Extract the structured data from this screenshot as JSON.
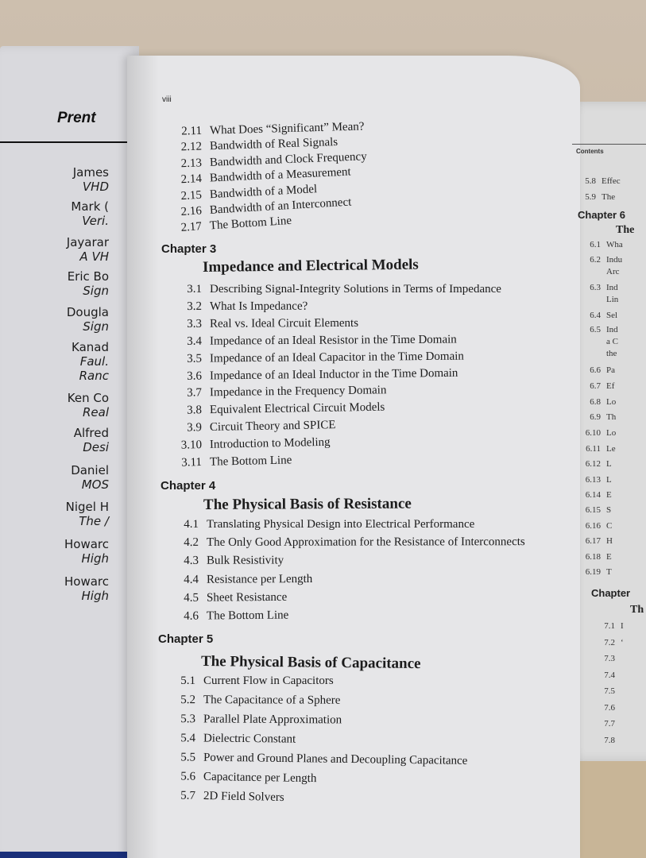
{
  "left_page": {
    "brand": "Prent",
    "entries": [
      {
        "name": "James",
        "sub": "VHD"
      },
      {
        "name": "Mark (",
        "sub": "Veri."
      },
      {
        "name": "Jayarar",
        "sub": "A VH"
      },
      {
        "name": "Eric Bo",
        "sub": "Sign"
      },
      {
        "name": "Dougla",
        "sub": "Sign"
      },
      {
        "name": "Kanad",
        "sub": "Faul. Ranc"
      },
      {
        "name": "Ken Co",
        "sub": "Real"
      },
      {
        "name": "Alfred",
        "sub": "Desi"
      },
      {
        "name": "Daniel",
        "sub": "MOS"
      },
      {
        "name": "Nigel H",
        "sub": "The /"
      },
      {
        "name": "Howarc",
        "sub": "High"
      },
      {
        "name": "Howarc",
        "sub": "High"
      }
    ]
  },
  "center_page": {
    "page_number": "viii",
    "blocks": [
      {
        "chapter": "",
        "title": "",
        "entries": [
          [
            "2.11",
            "What Does “Significant” Mean?"
          ],
          [
            "2.12",
            "Bandwidth of Real Signals"
          ],
          [
            "2.13",
            "Bandwidth and Clock Frequency"
          ],
          [
            "2.14",
            "Bandwidth of a Measurement"
          ],
          [
            "2.15",
            "Bandwidth of a Model"
          ],
          [
            "2.16",
            "Bandwidth of an Interconnect"
          ],
          [
            "2.17",
            "The Bottom Line"
          ]
        ]
      },
      {
        "chapter": "Chapter 3",
        "title": "Impedance and Electrical Models",
        "entries": [
          [
            "3.1",
            "Describing Signal-Integrity Solutions in Terms of Impedance"
          ],
          [
            "3.2",
            "What Is Impedance?"
          ],
          [
            "3.3",
            "Real vs. Ideal Circuit Elements"
          ],
          [
            "3.4",
            "Impedance of an Ideal Resistor in the Time Domain"
          ],
          [
            "3.5",
            "Impedance of an Ideal Capacitor in the Time Domain"
          ],
          [
            "3.6",
            "Impedance of an Ideal Inductor in the Time Domain"
          ],
          [
            "3.7",
            "Impedance in the Frequency Domain"
          ],
          [
            "3.8",
            "Equivalent Electrical Circuit Models"
          ],
          [
            "3.9",
            "Circuit Theory and SPICE"
          ],
          [
            "3.10",
            "Introduction to Modeling"
          ],
          [
            "3.11",
            "The Bottom Line"
          ]
        ]
      },
      {
        "chapter": "Chapter 4",
        "title": "The Physical Basis of Resistance",
        "entries": [
          [
            "4.1",
            "Translating Physical Design into Electrical Performance"
          ],
          [
            "4.2",
            "The Only Good Approximation for the Resistance of Interconnects"
          ],
          [
            "4.3",
            "Bulk Resistivity"
          ],
          [
            "4.4",
            "Resistance per Length"
          ],
          [
            "4.5",
            "Sheet Resistance"
          ],
          [
            "4.6",
            "The Bottom Line"
          ]
        ]
      },
      {
        "chapter": "Chapter 5",
        "title": "The Physical Basis of Capacitance",
        "entries": [
          [
            "5.1",
            "Current Flow in Capacitors"
          ],
          [
            "5.2",
            "The Capacitance of a Sphere"
          ],
          [
            "5.3",
            "Parallel Plate Approximation"
          ],
          [
            "5.4",
            "Dielectric Constant"
          ],
          [
            "5.5",
            "Power and Ground Planes and Decoupling Capacitance"
          ],
          [
            "5.6",
            "Capacitance per Length"
          ],
          [
            "5.7",
            "2D Field Solvers"
          ]
        ]
      }
    ]
  },
  "right_page": {
    "header": "Contents",
    "top_entries": [
      [
        "5.8",
        "Effec"
      ],
      [
        "5.9",
        "The"
      ]
    ],
    "chapter6": "Chapter 6",
    "chapter6_title": "The",
    "ch6_entries": [
      [
        "6.1",
        "Wha"
      ],
      [
        "6.2",
        "Indu"
      ],
      [
        "",
        "Arc"
      ],
      [
        "6.3",
        "Ind"
      ],
      [
        "",
        "Lin"
      ],
      [
        "6.4",
        "Sel"
      ],
      [
        "6.5",
        "Ind"
      ],
      [
        "",
        "a C"
      ],
      [
        "",
        "the"
      ],
      [
        "6.6",
        "Pa"
      ],
      [
        "6.7",
        "Ef"
      ],
      [
        "6.8",
        "Lo"
      ],
      [
        "6.9",
        "Th"
      ],
      [
        "6.10",
        "Lo"
      ],
      [
        "6.11",
        "Le"
      ],
      [
        "6.12",
        "L"
      ],
      [
        "6.13",
        "L"
      ],
      [
        "6.14",
        "E"
      ],
      [
        "6.15",
        "S"
      ],
      [
        "6.16",
        "C"
      ],
      [
        "6.17",
        "H"
      ],
      [
        "6.18",
        "E"
      ],
      [
        "6.19",
        "T"
      ]
    ],
    "chapter7": "Chapter",
    "chapter7_title": "Th",
    "ch7_entries": [
      [
        "7.1",
        "I"
      ],
      [
        "7.2",
        "‘"
      ],
      [
        "7.3",
        ""
      ],
      [
        "7.4",
        ""
      ],
      [
        "7.5",
        ""
      ],
      [
        "7.6",
        ""
      ],
      [
        "7.7",
        ""
      ],
      [
        "7.8",
        ""
      ]
    ]
  }
}
